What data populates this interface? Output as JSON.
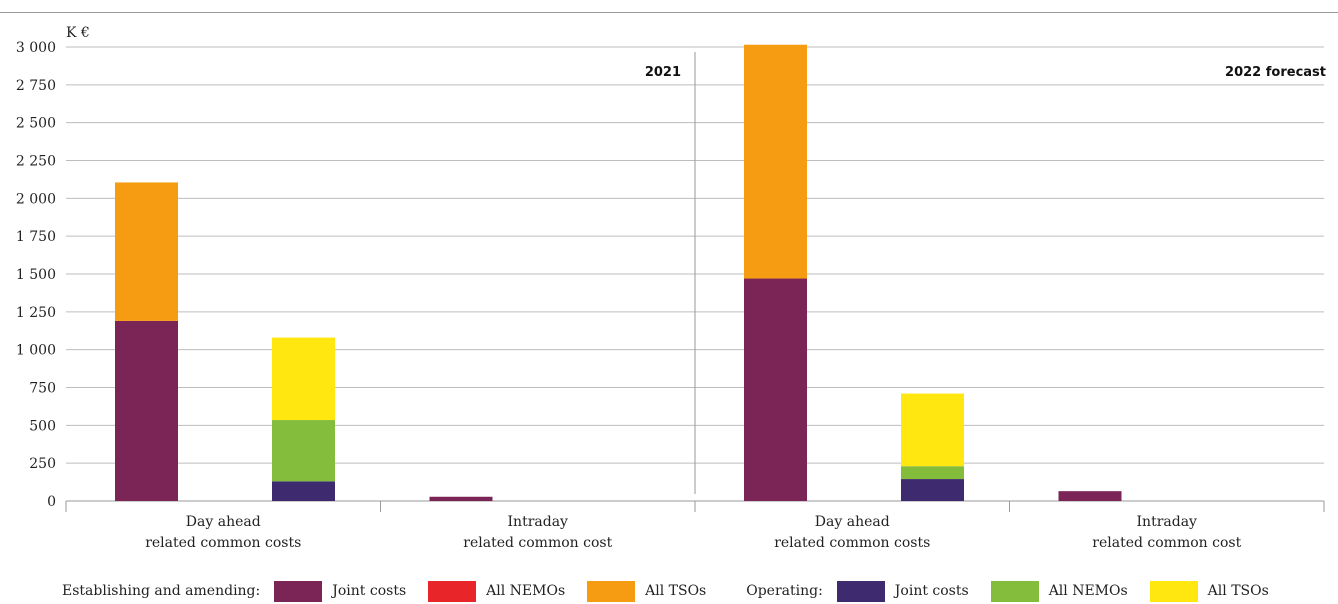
{
  "chart_data": {
    "type": "bar",
    "stacked": true,
    "unit_label": "K €",
    "ylim": [
      0,
      3000
    ],
    "yticks": [
      "0",
      "250",
      "500",
      "750",
      "1 000",
      "1 250",
      "1 500",
      "1 750",
      "2 000",
      "2 250",
      "2 500",
      "2 750",
      "3 000"
    ],
    "grid": true,
    "periods": [
      {
        "label": "2021",
        "categories": [
          "Day ahead\nrelated common costs",
          "Intraday\nrelated common cost"
        ]
      },
      {
        "label": "2022 forecast",
        "categories": [
          "Day ahead\nrelated common costs",
          "Intraday\nrelated common cost"
        ]
      }
    ],
    "bars": [
      {
        "period": 0,
        "category": 0,
        "group": "Establishing and amending",
        "segments": [
          {
            "series": "Joint costs",
            "value": 1190
          },
          {
            "series": "All NEMOs",
            "value": 0
          },
          {
            "series": "All TSOs",
            "value": 915
          }
        ]
      },
      {
        "period": 0,
        "category": 0,
        "group": "Operating",
        "segments": [
          {
            "series": "Joint costs",
            "value": 130
          },
          {
            "series": "All NEMOs",
            "value": 405
          },
          {
            "series": "All TSOs",
            "value": 545
          }
        ]
      },
      {
        "period": 0,
        "category": 1,
        "group": "Establishing and amending",
        "segments": [
          {
            "series": "Joint costs",
            "value": 28
          },
          {
            "series": "All NEMOs",
            "value": 0
          },
          {
            "series": "All TSOs",
            "value": 0
          }
        ]
      },
      {
        "period": 1,
        "category": 0,
        "group": "Establishing and amending",
        "segments": [
          {
            "series": "Joint costs",
            "value": 1470
          },
          {
            "series": "All NEMOs",
            "value": 0
          },
          {
            "series": "All TSOs",
            "value": 1545
          }
        ]
      },
      {
        "period": 1,
        "category": 0,
        "group": "Operating",
        "segments": [
          {
            "series": "Joint costs",
            "value": 145
          },
          {
            "series": "All NEMOs",
            "value": 85
          },
          {
            "series": "All TSOs",
            "value": 480
          }
        ]
      },
      {
        "period": 1,
        "category": 1,
        "group": "Establishing and amending",
        "segments": [
          {
            "series": "Joint costs",
            "value": 65
          },
          {
            "series": "All NEMOs",
            "value": 0
          },
          {
            "series": "All TSOs",
            "value": 0
          }
        ]
      }
    ],
    "colors": {
      "Establishing and amending": {
        "Joint costs": "#7b2557",
        "All NEMOs": "#e8262a",
        "All TSOs": "#f59c12"
      },
      "Operating": {
        "Joint costs": "#3e2a6f",
        "All NEMOs": "#84bc3c",
        "All TSOs": "#ffe70f"
      }
    },
    "legend": {
      "placement": "bottom",
      "groups": [
        {
          "label": "Establishing and amending:",
          "items": [
            {
              "name": "Joint costs",
              "color": "#7b2557"
            },
            {
              "name": "All NEMOs",
              "color": "#e8262a"
            },
            {
              "name": "All TSOs",
              "color": "#f59c12"
            }
          ]
        },
        {
          "label": "Operating:",
          "items": [
            {
              "name": "Joint costs",
              "color": "#3e2a6f"
            },
            {
              "name": "All NEMOs",
              "color": "#84bc3c"
            },
            {
              "name": "All TSOs",
              "color": "#ffe70f"
            }
          ]
        }
      ]
    }
  }
}
